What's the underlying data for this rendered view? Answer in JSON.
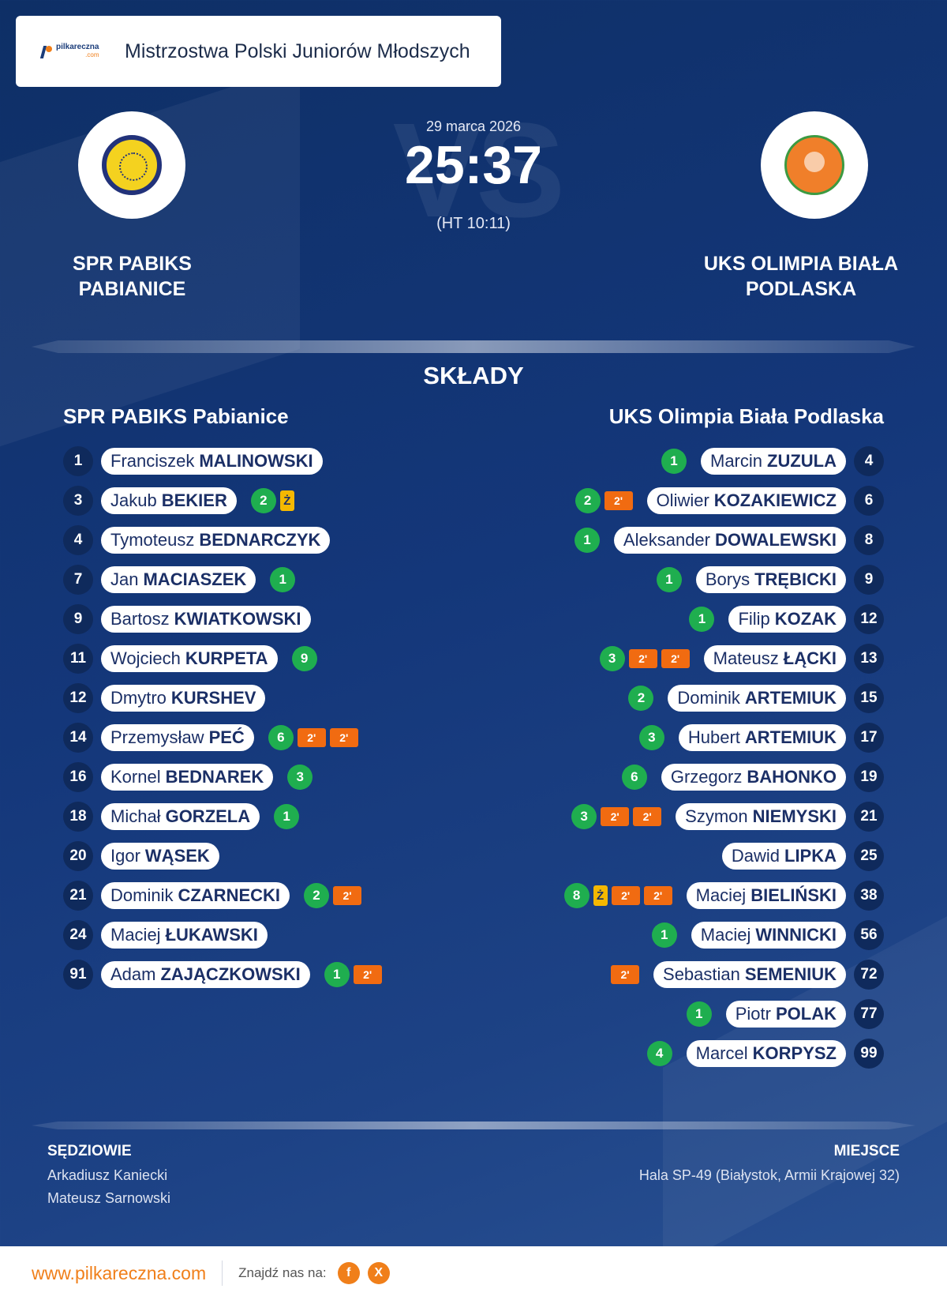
{
  "header": {
    "title": "Mistrzostwa Polski Juniorów Młodszych",
    "logo_text": "pilkareczna",
    "logo_sub": ".com"
  },
  "match": {
    "date": "29 marca 2026",
    "score": "25:37",
    "halftime": "(HT 10:11)",
    "watermark": "VS",
    "home_name": "SPR PABIKS PABIANICE",
    "away_name": "UKS OLIMPIA BIAŁA PODLASKA"
  },
  "squads": {
    "title": "SKŁADY",
    "home_title": "SPR PABIKS  Pabianice",
    "away_title": "UKS Olimpia Biała Podlaska",
    "home": [
      {
        "num": "1",
        "first": "Franciszek",
        "last": "MALINOWSKI",
        "events": []
      },
      {
        "num": "3",
        "first": "Jakub",
        "last": "BEKIER",
        "events": [
          {
            "t": "goal",
            "v": "2"
          },
          {
            "t": "yellow",
            "v": "Ż"
          }
        ]
      },
      {
        "num": "4",
        "first": "Tymoteusz",
        "last": "BEDNARCZYK",
        "events": []
      },
      {
        "num": "7",
        "first": "Jan",
        "last": "MACIASZEK",
        "events": [
          {
            "t": "goal",
            "v": "1"
          }
        ]
      },
      {
        "num": "9",
        "first": "Bartosz",
        "last": "KWIATKOWSKI",
        "events": []
      },
      {
        "num": "11",
        "first": "Wojciech",
        "last": "KURPETA",
        "events": [
          {
            "t": "goal",
            "v": "9"
          }
        ]
      },
      {
        "num": "12",
        "first": "Dmytro",
        "last": "KURSHEV",
        "events": []
      },
      {
        "num": "14",
        "first": "Przemysław",
        "last": "PEĆ",
        "events": [
          {
            "t": "goal",
            "v": "6"
          },
          {
            "t": "susp",
            "v": "2'"
          },
          {
            "t": "susp",
            "v": "2'"
          }
        ]
      },
      {
        "num": "16",
        "first": "Kornel",
        "last": "BEDNAREK",
        "events": [
          {
            "t": "goal",
            "v": "3"
          }
        ]
      },
      {
        "num": "18",
        "first": "Michał",
        "last": "GORZELA",
        "events": [
          {
            "t": "goal",
            "v": "1"
          }
        ]
      },
      {
        "num": "20",
        "first": "Igor",
        "last": "WĄSEK",
        "events": []
      },
      {
        "num": "21",
        "first": "Dominik",
        "last": "CZARNECKI",
        "events": [
          {
            "t": "goal",
            "v": "2"
          },
          {
            "t": "susp",
            "v": "2'"
          }
        ]
      },
      {
        "num": "24",
        "first": "Maciej",
        "last": "ŁUKAWSKI",
        "events": []
      },
      {
        "num": "91",
        "first": "Adam",
        "last": "ZAJĄCZKOWSKI",
        "events": [
          {
            "t": "goal",
            "v": "1"
          },
          {
            "t": "susp",
            "v": "2'"
          }
        ]
      }
    ],
    "away": [
      {
        "num": "4",
        "first": "Marcin",
        "last": "ZUZULA",
        "events": [
          {
            "t": "goal",
            "v": "1"
          }
        ]
      },
      {
        "num": "6",
        "first": "Oliwier",
        "last": "KOZAKIEWICZ",
        "events": [
          {
            "t": "goal",
            "v": "2"
          },
          {
            "t": "susp",
            "v": "2'"
          }
        ]
      },
      {
        "num": "8",
        "first": "Aleksander",
        "last": "DOWALEWSKI",
        "events": [
          {
            "t": "goal",
            "v": "1"
          }
        ]
      },
      {
        "num": "9",
        "first": "Borys",
        "last": "TRĘBICKI",
        "events": [
          {
            "t": "goal",
            "v": "1"
          }
        ]
      },
      {
        "num": "12",
        "first": "Filip",
        "last": "KOZAK",
        "events": [
          {
            "t": "goal",
            "v": "1"
          }
        ]
      },
      {
        "num": "13",
        "first": "Mateusz",
        "last": "ŁĄCKI",
        "events": [
          {
            "t": "goal",
            "v": "3"
          },
          {
            "t": "susp",
            "v": "2'"
          },
          {
            "t": "susp",
            "v": "2'"
          }
        ]
      },
      {
        "num": "15",
        "first": "Dominik",
        "last": "ARTEMIUK",
        "events": [
          {
            "t": "goal",
            "v": "2"
          }
        ]
      },
      {
        "num": "17",
        "first": "Hubert",
        "last": "ARTEMIUK",
        "events": [
          {
            "t": "goal",
            "v": "3"
          }
        ]
      },
      {
        "num": "19",
        "first": "Grzegorz",
        "last": "BAHONKO",
        "events": [
          {
            "t": "goal",
            "v": "6"
          }
        ]
      },
      {
        "num": "21",
        "first": "Szymon",
        "last": "NIEMYSKI",
        "events": [
          {
            "t": "goal",
            "v": "3"
          },
          {
            "t": "susp",
            "v": "2'"
          },
          {
            "t": "susp",
            "v": "2'"
          }
        ]
      },
      {
        "num": "25",
        "first": "Dawid",
        "last": "LIPKA",
        "events": []
      },
      {
        "num": "38",
        "first": "Maciej",
        "last": "BIELIŃSKI",
        "events": [
          {
            "t": "goal",
            "v": "8"
          },
          {
            "t": "yellow",
            "v": "Ż"
          },
          {
            "t": "susp",
            "v": "2'"
          },
          {
            "t": "susp",
            "v": "2'"
          }
        ]
      },
      {
        "num": "56",
        "first": "Maciej",
        "last": "WINNICKI",
        "events": [
          {
            "t": "goal",
            "v": "1"
          }
        ]
      },
      {
        "num": "72",
        "first": "Sebastian",
        "last": "SEMENIUK",
        "events": [
          {
            "t": "susp",
            "v": "2'"
          }
        ]
      },
      {
        "num": "77",
        "first": "Piotr",
        "last": "POLAK",
        "events": [
          {
            "t": "goal",
            "v": "1"
          }
        ]
      },
      {
        "num": "99",
        "first": "Marcel",
        "last": "KORPYSZ",
        "events": [
          {
            "t": "goal",
            "v": "4"
          }
        ]
      }
    ]
  },
  "officials": {
    "referees_label": "SĘDZIOWIE",
    "referees": [
      "Arkadiusz Kaniecki",
      "Mateusz Sarnowski"
    ],
    "venue_label": "MIEJSCE",
    "venue": "Hala SP-49 (Białystok, Armii Krajowej 32)"
  },
  "footer": {
    "site": "www.pilkareczna.com",
    "find_label": "Znajdź nas na:",
    "social": [
      {
        "icon": "facebook-icon",
        "glyph": "f"
      },
      {
        "icon": "x-icon",
        "glyph": "X"
      }
    ]
  },
  "colors": {
    "background": "#14377a",
    "goal": "#1fae4f",
    "suspension": "#f16b11",
    "yellow_card": "#f5b800",
    "accent": "#f07f1a"
  }
}
